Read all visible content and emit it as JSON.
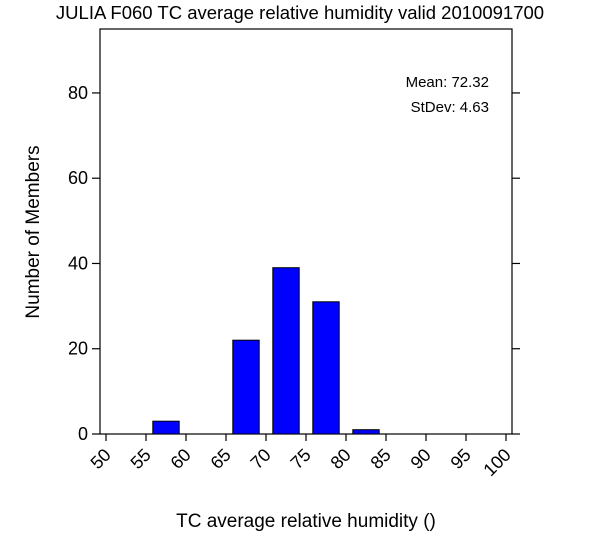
{
  "chart_data": {
    "type": "bar",
    "title": "JULIA F060 TC average relative humidity valid 2010091700",
    "xlabel": "TC average relative humidity ()",
    "ylabel": "Number of Members",
    "xlim": [
      50,
      100
    ],
    "ylim": [
      0,
      95
    ],
    "x_ticks": [
      "50",
      "55",
      "60",
      "65",
      "70",
      "75",
      "80",
      "85",
      "90",
      "95",
      "100"
    ],
    "y_ticks": [
      "0",
      "20",
      "40",
      "60",
      "80"
    ],
    "bins": [
      {
        "start": 55,
        "end": 60,
        "count": 3
      },
      {
        "start": 60,
        "end": 65,
        "count": 0
      },
      {
        "start": 65,
        "end": 70,
        "count": 22
      },
      {
        "start": 70,
        "end": 75,
        "count": 39
      },
      {
        "start": 75,
        "end": 80,
        "count": 31
      },
      {
        "start": 80,
        "end": 85,
        "count": 1
      }
    ],
    "bar_color": "#0000ff",
    "grid": false,
    "stats": {
      "mean_label": "Mean: 72.32",
      "stdev_label": "StDev: 4.63"
    }
  }
}
